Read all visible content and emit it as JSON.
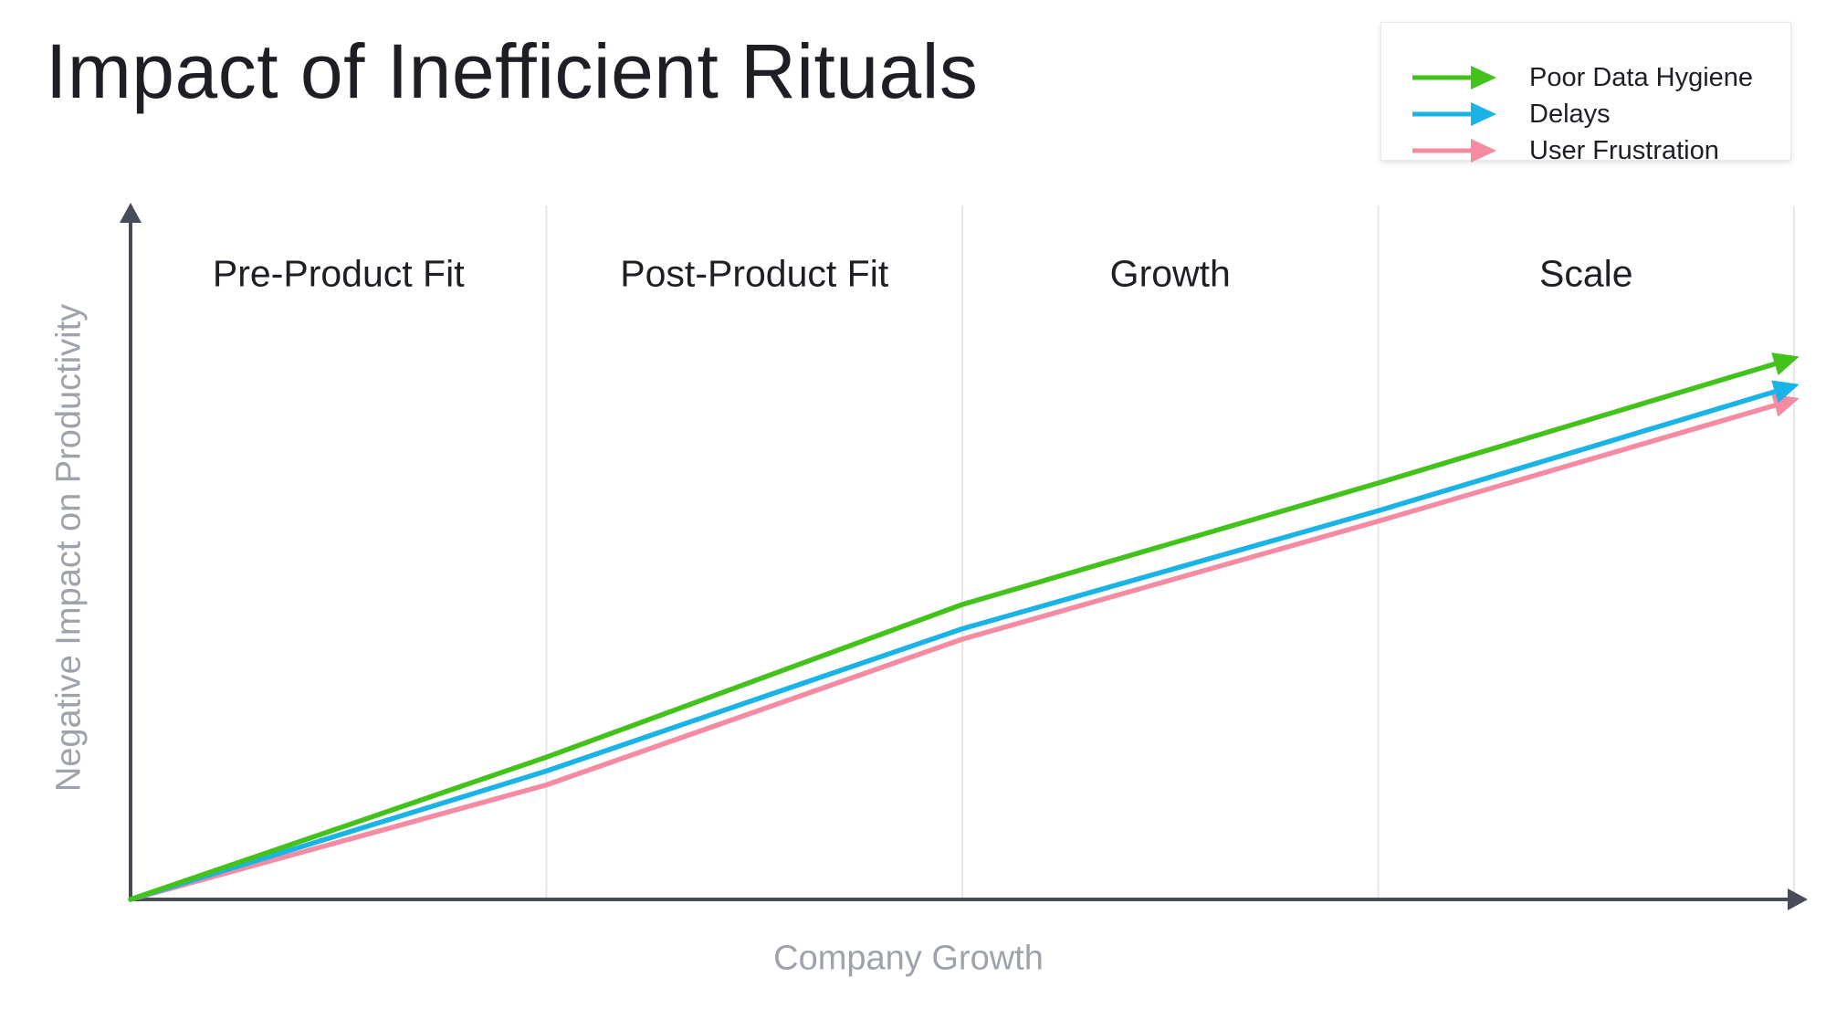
{
  "chart_data": {
    "type": "line",
    "title": "Impact of Inefficient Rituals",
    "xlabel": "Company Growth",
    "ylabel": "Negative Impact on Productivity",
    "phases": [
      "Pre-Product Fit",
      "Post-Product Fit",
      "Growth",
      "Scale"
    ],
    "x": [
      0,
      1,
      2,
      3,
      4
    ],
    "xlim": [
      0,
      4
    ],
    "ylim": [
      0,
      100
    ],
    "grid": true,
    "legend_position": "top-right",
    "series": [
      {
        "name": "Poor Data Hygiene",
        "color": "#44c21c",
        "values": [
          0,
          20.5,
          42.5,
          60,
          78
        ]
      },
      {
        "name": "Delays",
        "color": "#1ab3e6",
        "values": [
          0,
          18.5,
          39,
          56,
          74
        ]
      },
      {
        "name": "User Frustration",
        "color": "#f58aa3",
        "values": [
          0,
          16.5,
          37.5,
          54.5,
          72
        ]
      }
    ]
  }
}
